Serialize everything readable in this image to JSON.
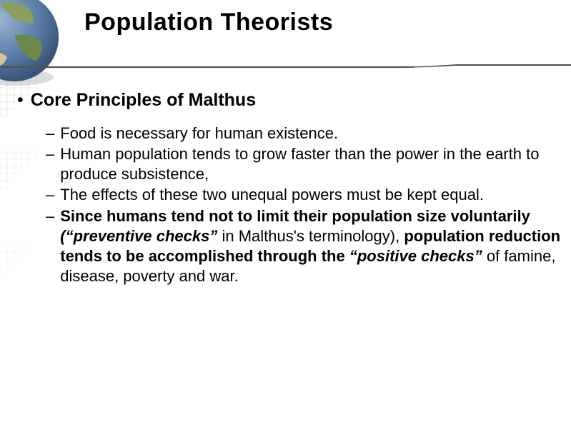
{
  "slide": {
    "title": "Population Theorists",
    "title_fontsize": 34,
    "title_color": "#000000",
    "background": "#ffffff"
  },
  "globe": {
    "ocean_color": "#5b7ea8",
    "land_colors": [
      "#6b8848",
      "#a89858",
      "#d4c89a"
    ],
    "shadow_color": "#888888"
  },
  "header_line": {
    "stroke_color": "#555555",
    "stroke_width": 2
  },
  "grid_pattern": {
    "square_size": 10,
    "stroke_color": "#d0d0d0",
    "opacity_steps": [
      0.5,
      0.3,
      0.15
    ]
  },
  "main_bullet": {
    "text": "Core Principles of Malthus",
    "fontsize": 25,
    "fontweight": "bold"
  },
  "sub_items": [
    {
      "segments": [
        {
          "text": "Food is necessary for human existence.",
          "style": "normal"
        }
      ]
    },
    {
      "segments": [
        {
          "text": "Human population tends to grow faster than the power in the earth to produce subsistence,",
          "style": "normal"
        }
      ]
    },
    {
      "segments": [
        {
          "text": "The effects of these two unequal powers must be kept equal.",
          "style": "normal"
        }
      ]
    },
    {
      "segments": [
        {
          "text": "Since humans tend not to limit their population size voluntarily ",
          "style": "bold"
        },
        {
          "text": "(“preventive checks”",
          "style": "bold-italic"
        },
        {
          "text": " in Malthus's terminology), ",
          "style": "normal"
        },
        {
          "text": "population reduction tends to be accomplished through the ",
          "style": "bold"
        },
        {
          "text": "“positive checks”",
          "style": "bold-italic"
        },
        {
          "text": " of famine, disease, poverty and war.",
          "style": "normal"
        }
      ]
    }
  ],
  "body_fontsize": 22,
  "body_color": "#000000"
}
